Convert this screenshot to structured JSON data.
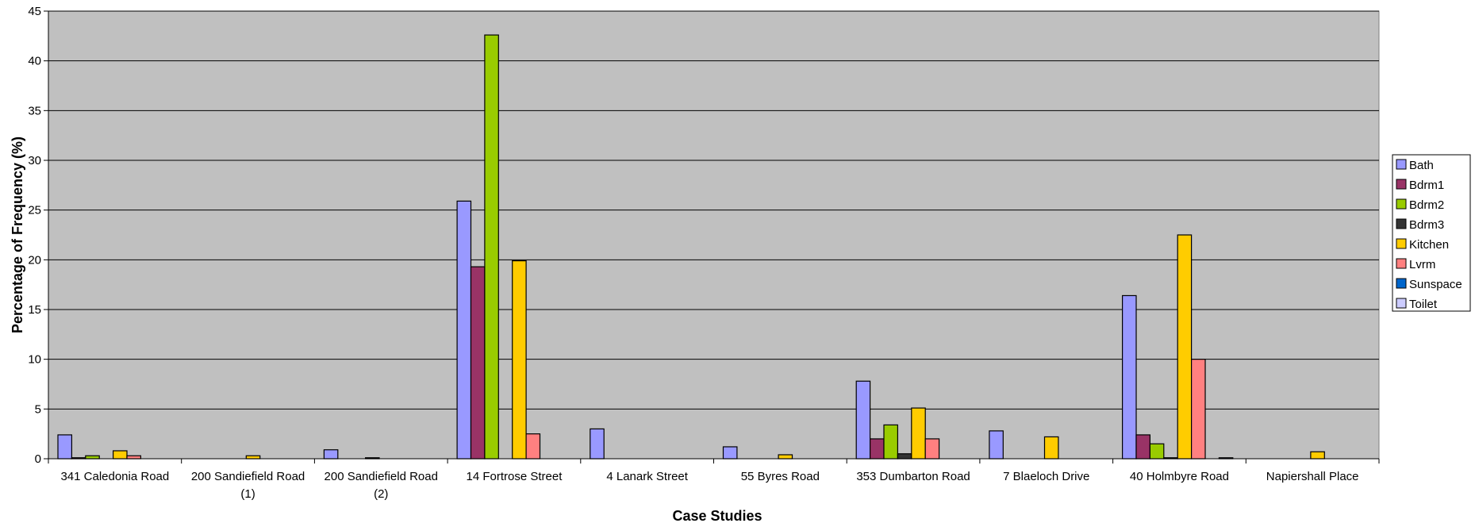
{
  "chart_data": {
    "type": "bar",
    "xlabel": "Case Studies",
    "ylabel": "Percentage of Frequency (%)",
    "ylim": [
      0,
      45
    ],
    "yticks": [
      0,
      5,
      10,
      15,
      20,
      25,
      30,
      35,
      40,
      45
    ],
    "grid": true,
    "legend_position": "right",
    "plot_background": "#c0c0c0",
    "categories": [
      [
        "341 Caledonia Road"
      ],
      [
        "200 Sandiefield Road",
        "(1)"
      ],
      [
        "200 Sandiefield Road",
        "(2)"
      ],
      [
        "14 Fortrose Street"
      ],
      [
        "4 Lanark Street"
      ],
      [
        "55 Byres Road"
      ],
      [
        "353 Dumbarton Road"
      ],
      [
        "7 Blaeloch Drive"
      ],
      [
        "40 Holmbyre Road"
      ],
      [
        "Napiershall Place"
      ]
    ],
    "series": [
      {
        "name": "Bath",
        "color": "#9999ff",
        "values": [
          2.4,
          0,
          0.9,
          25.9,
          3.0,
          1.2,
          7.8,
          2.8,
          16.4,
          0
        ]
      },
      {
        "name": "Bdrm1",
        "color": "#993366",
        "values": [
          0.1,
          0,
          0,
          19.3,
          0,
          0,
          2.0,
          0,
          2.4,
          0
        ]
      },
      {
        "name": "Bdrm2",
        "color": "#99cc00",
        "values": [
          0.3,
          0,
          0,
          42.6,
          0,
          0,
          3.4,
          0,
          1.5,
          0
        ]
      },
      {
        "name": "Bdrm3",
        "color": "#333333",
        "values": [
          0,
          0,
          0.1,
          0,
          0,
          0,
          0.5,
          0,
          0.1,
          0
        ]
      },
      {
        "name": "Kitchen",
        "color": "#ffcc00",
        "values": [
          0.8,
          0.3,
          0,
          19.9,
          0,
          0.4,
          5.1,
          2.2,
          22.5,
          0.7
        ]
      },
      {
        "name": "Lvrm",
        "color": "#ff8080",
        "values": [
          0.3,
          0,
          0,
          2.5,
          0,
          0,
          2.0,
          0,
          10.0,
          0
        ]
      },
      {
        "name": "Sunspace",
        "color": "#0066cc",
        "values": [
          0,
          0,
          0,
          0,
          0,
          0,
          0,
          0,
          0,
          0
        ]
      },
      {
        "name": "Toilet",
        "color": "#ccccff",
        "values": [
          0,
          0,
          0,
          0,
          0,
          0,
          0,
          0,
          0.1,
          0
        ]
      }
    ]
  }
}
